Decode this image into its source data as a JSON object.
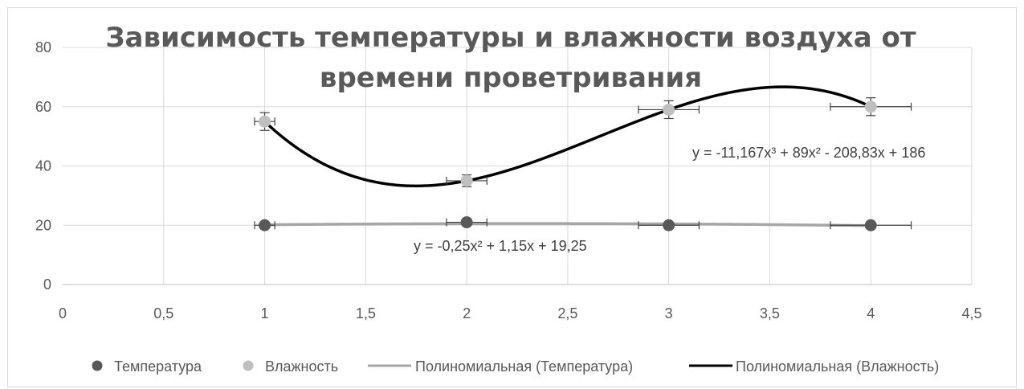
{
  "chart_data": {
    "type": "scatter",
    "title": "Зависимость температуры и влажности воздуха от времени проветривания",
    "title_lines": [
      "Зависимость температуры и влажности воздуха от",
      "времени проветривания"
    ],
    "xlim": [
      0,
      4.5
    ],
    "ylim": [
      0,
      80
    ],
    "x_ticks": [
      "0",
      "0,5",
      "1",
      "1,5",
      "2",
      "2,5",
      "3",
      "3,5",
      "4",
      "4,5"
    ],
    "y_ticks": [
      "0",
      "20",
      "40",
      "60",
      "80"
    ],
    "grid": true,
    "legend_position": "bottom",
    "series": [
      {
        "name": "Температура",
        "color": "#595959",
        "x": [
          1,
          2,
          3,
          4
        ],
        "y": [
          20,
          21,
          20,
          20
        ],
        "x_error": [
          0.05,
          0.1,
          0.15,
          0.2
        ],
        "y_error": [
          0,
          0,
          0,
          0
        ]
      },
      {
        "name": "Влажность",
        "color": "#bfbfbf",
        "x": [
          1,
          2,
          3,
          4
        ],
        "y": [
          55,
          35,
          59,
          60
        ],
        "x_error": [
          0.05,
          0.1,
          0.15,
          0.2
        ],
        "y_error": [
          3,
          2,
          3,
          3
        ]
      }
    ],
    "trendlines": [
      {
        "name": "Полиномиальная (Температура)",
        "color": "#a6a6a6",
        "coefficients": [
          0,
          -0.25,
          1.15,
          19.25
        ],
        "x_range": [
          1,
          4
        ],
        "equation": "y = -0,25x² + 1,15x + 19,25"
      },
      {
        "name": "Полиномиальная (Влажность)",
        "color": "#000000",
        "coefficients": [
          -11.167,
          89,
          -208.83,
          186
        ],
        "x_range": [
          1,
          4
        ],
        "equation": "y = -11,167x³ + 89x² - 208,83x + 186"
      }
    ]
  }
}
